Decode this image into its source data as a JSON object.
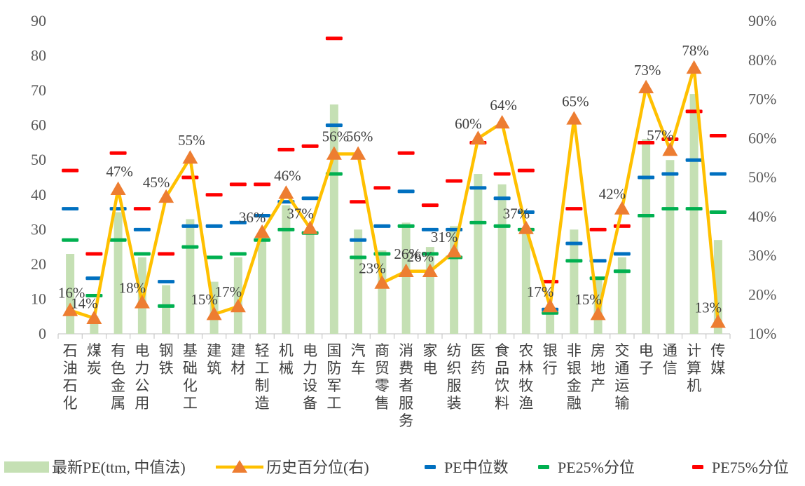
{
  "chart_data": {
    "type": "bar",
    "categories": [
      "石油石化",
      "煤炭",
      "有色金属",
      "电力公用",
      "钢铁",
      "基础化工",
      "建筑",
      "建材",
      "轻工制造",
      "机械",
      "电力设备",
      "国防军工",
      "汽车",
      "商贸零售",
      "消费者服务",
      "家电",
      "纺织服装",
      "医药",
      "食品饮料",
      "农林牧渔",
      "银行",
      "非银金融",
      "房地产",
      "交通运输",
      "电子",
      "通信",
      "计算机",
      "传媒"
    ],
    "series": [
      {
        "name": "最新PE(ttm, 中值法)",
        "type": "bar",
        "axis": "left",
        "color": "#c5e0b4",
        "values": [
          23,
          5,
          35,
          22,
          14,
          33,
          15,
          22,
          28,
          37,
          30,
          66,
          30,
          24,
          32,
          25,
          31,
          46,
          43,
          30,
          7,
          30,
          16,
          22,
          56,
          50,
          69,
          27
        ]
      },
      {
        "name": "历史百分位(右)",
        "type": "line",
        "axis": "right",
        "color": "#ffc000",
        "marker_color": "#ed7d31",
        "values": [
          16,
          14,
          47,
          18,
          45,
          55,
          15,
          17,
          36,
          46,
          37,
          56,
          56,
          23,
          26,
          26,
          31,
          60,
          64,
          37,
          17,
          65,
          15,
          42,
          73,
          57,
          78,
          13
        ],
        "labels": [
          "16%",
          "14%",
          "47%",
          "18%",
          "45%",
          "55%",
          "15%",
          "17%",
          "36%",
          "46%",
          "37%",
          "56%",
          "56%",
          "23%",
          "26%",
          "26%",
          "31%",
          "60%",
          "64%",
          "37%",
          "17%",
          "65%",
          "15%",
          "42%",
          "73%",
          "57%",
          "78%",
          "13%"
        ]
      },
      {
        "name": "PE中位数",
        "type": "marker",
        "axis": "left",
        "color": "#0070c0",
        "values": [
          36,
          16,
          36,
          30,
          15,
          31,
          31,
          32,
          34,
          38,
          39,
          60,
          27,
          31,
          41,
          30,
          30,
          42,
          39,
          35,
          7,
          26,
          21,
          23,
          45,
          46,
          50,
          46
        ]
      },
      {
        "name": "PE25%分位",
        "type": "marker",
        "axis": "left",
        "color": "#00b050",
        "values": [
          27,
          11,
          27,
          23,
          8,
          25,
          22,
          23,
          27,
          30,
          29,
          46,
          22,
          23,
          31,
          23,
          22,
          32,
          31,
          30,
          6,
          21,
          16,
          18,
          34,
          36,
          36,
          35
        ]
      },
      {
        "name": "PE75%分位",
        "type": "marker",
        "axis": "left",
        "color": "#ff0000",
        "values": [
          47,
          23,
          52,
          36,
          23,
          45,
          40,
          43,
          43,
          53,
          54,
          85,
          38,
          42,
          52,
          37,
          44,
          55,
          46,
          47,
          15,
          36,
          30,
          31,
          55,
          56,
          64,
          57
        ]
      }
    ],
    "left_axis": {
      "ylim": [
        0,
        90
      ],
      "ticks": [
        "0",
        "10",
        "20",
        "30",
        "40",
        "50",
        "60",
        "70",
        "80",
        "90"
      ]
    },
    "right_axis": {
      "ylim": [
        10,
        90
      ],
      "ticks": [
        "10%",
        "20%",
        "30%",
        "40%",
        "50%",
        "60%",
        "70%",
        "80%",
        "90%"
      ]
    },
    "legend": {
      "position": "bottom",
      "entries": [
        "最新PE(ttm, 中值法)",
        "历史百分位(右)",
        "PE中位数",
        "PE25%分位",
        "PE75%分位"
      ]
    }
  }
}
